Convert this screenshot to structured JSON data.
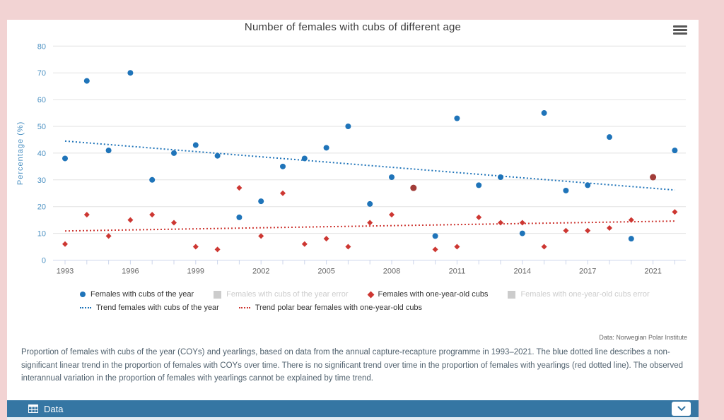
{
  "header": {
    "menu_icon": "hamburger-icon"
  },
  "chart_data": {
    "type": "scatter",
    "title": "Number of females with cubs of different age",
    "ylabel": "Percentage (%)",
    "ylim": [
      0,
      80
    ],
    "ytick_step": 10,
    "grid": true,
    "x_years": [
      1993,
      1994,
      1995,
      1996,
      1997,
      1998,
      1999,
      2000,
      2001,
      2002,
      2003,
      2004,
      2005,
      2006,
      2007,
      2008,
      2009,
      2010,
      2011,
      2012,
      2013,
      2014,
      2015,
      2016,
      2017,
      2018,
      2019,
      2021,
      2022
    ],
    "xticks": {
      "indices": [
        0,
        3,
        6,
        9,
        12,
        15,
        18,
        21,
        24,
        27
      ],
      "labels": [
        "1993",
        "1996",
        "1999",
        "2002",
        "2005",
        "2008",
        "2011",
        "2014",
        "2017",
        "2021"
      ]
    },
    "series": [
      {
        "name": "Females with cubs of the year",
        "marker": "circle",
        "color": "#1f74b9",
        "values": [
          38,
          67,
          41,
          70,
          30,
          40,
          43,
          39,
          16,
          22,
          35,
          38,
          42,
          50,
          21,
          31,
          27,
          9,
          53,
          28,
          31,
          10,
          55,
          26,
          28,
          46,
          8,
          31,
          41
        ]
      },
      {
        "name": "Females with one-year-old cubs",
        "marker": "diamond",
        "color": "#cd3732",
        "values": [
          6,
          17,
          9,
          15,
          17,
          14,
          5,
          4,
          27,
          9,
          25,
          6,
          8,
          5,
          14,
          17,
          27,
          4,
          5,
          16,
          14,
          14,
          5,
          11,
          11,
          12,
          15,
          31,
          18
        ]
      }
    ],
    "overlap_years": [
      2009,
      2021
    ],
    "overlap_color": "#a13c38",
    "trend_lines": [
      {
        "name": "Trend females with cubs of the year",
        "color": "#1f74b9",
        "start_value": 44.5,
        "end_value": 26.2
      },
      {
        "name": "Trend polar bear females with one-year-old cubs",
        "color": "#cd3732",
        "start_value": 10.9,
        "end_value": 14.6
      }
    ],
    "axis_colors": {
      "y_labels": "#4a90c2",
      "x_labels": "#666666",
      "gridline": "#e2e2e2",
      "axis_line": "#ccd6eb"
    }
  },
  "legend": {
    "rows": [
      [
        {
          "label": "Females with cubs of the year",
          "marker": "circle",
          "color": "#1f74b9",
          "disabled": false
        },
        {
          "label": "Females with cubs of the year error",
          "marker": "square",
          "color": "#cccccc",
          "disabled": true
        },
        {
          "label": "Females with one-year-old cubs",
          "marker": "diamond",
          "color": "#cd3732",
          "disabled": false
        },
        {
          "label": "Females with one-year-old cubs error",
          "marker": "square",
          "color": "#cccccc",
          "disabled": true
        }
      ],
      [
        {
          "label": "Trend females with cubs of the year",
          "marker": "dotted-line",
          "color": "#1f74b9",
          "disabled": false
        },
        {
          "label": "Trend polar bear females with one-year-old cubs",
          "marker": "dotted-line",
          "color": "#cd3732",
          "disabled": false
        }
      ]
    ]
  },
  "attribution": "Data: Norwegian Polar Institute",
  "caption": "Proportion of females with cubs of the year (COYs) and yearlings, based on data from the annual capture-recapture programme in 1993–2021. The blue dotted line describes a non-significant linear trend in the proportion of females with COYs over time. There is no significant trend over time in the proportion of females with yearlings (red dotted line). The observed interannual variation in the proportion of females with yearlings cannot be explained by time trend.",
  "data_panel": {
    "label": "Data",
    "table_icon": "table-icon",
    "chevron_icon": "chevron-down-icon"
  }
}
